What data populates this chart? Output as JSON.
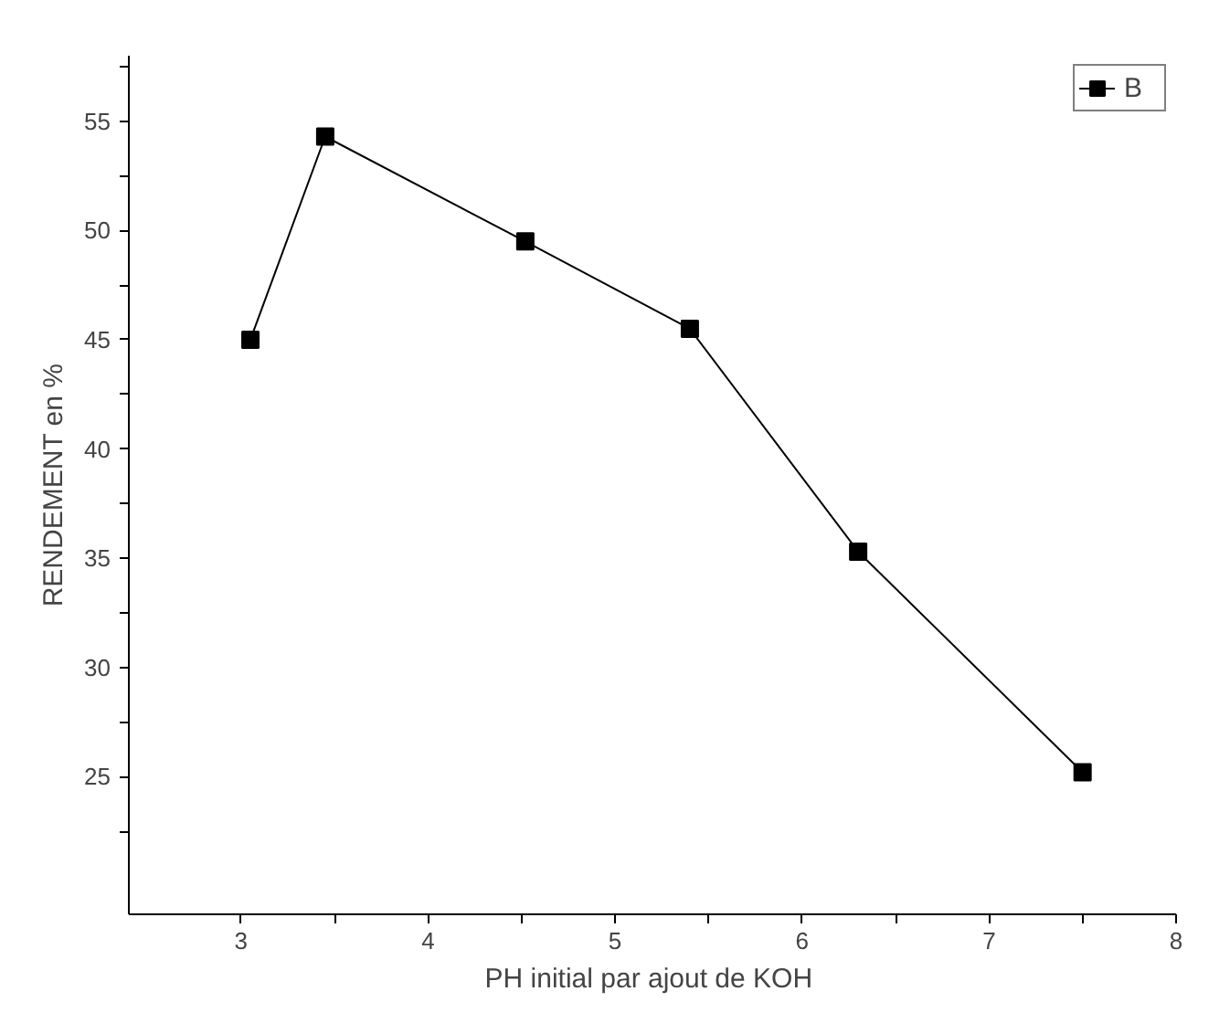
{
  "chart_data": {
    "type": "line",
    "xlabel": "PH initial  par ajout de KOH",
    "ylabel": "RENDEMENT en %",
    "x": [
      3.05,
      3.45,
      4.52,
      5.4,
      6.3,
      7.5
    ],
    "series": [
      {
        "name": "B",
        "color": "#000000",
        "values": [
          45.0,
          54.3,
          49.5,
          45.5,
          35.3,
          25.2
        ]
      }
    ],
    "xlim": [
      2.4,
      8.0
    ],
    "ylim": [
      18.7,
      58.0
    ],
    "xticks": [
      3,
      {
        "value": 3.5,
        "label": null
      },
      4,
      {
        "value": 4.5,
        "label": null
      },
      5,
      {
        "value": 5.5,
        "label": null
      },
      6,
      {
        "value": 6.5,
        "label": null
      },
      7,
      {
        "value": 7.5,
        "label": null
      },
      8
    ],
    "yticks": [
      {
        "value": 22.5,
        "label": null
      },
      25,
      {
        "value": 27.5,
        "label": null
      },
      30,
      {
        "value": 32.5,
        "label": null
      },
      35,
      {
        "value": 37.5,
        "label": null
      },
      40,
      {
        "value": 42.5,
        "label": null
      },
      45,
      {
        "value": 47.5,
        "label": null
      },
      50,
      {
        "value": 52.5,
        "label": null
      },
      55,
      {
        "value": 57.5,
        "label": null
      }
    ],
    "marker": "square",
    "line_style": "solid",
    "grid": false,
    "legend": "top right"
  }
}
